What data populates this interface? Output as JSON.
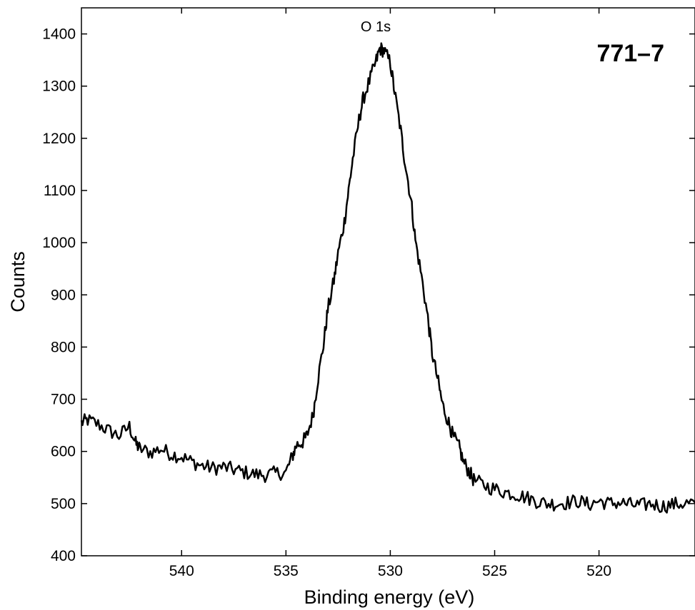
{
  "chart_data": {
    "type": "line",
    "title": "",
    "xlabel": "Binding energy (eV)",
    "ylabel": "Counts",
    "xlim": [
      544.8,
      515.4
    ],
    "ylim": [
      400,
      1450
    ],
    "x_reversed": true,
    "grid": false,
    "x_ticks": [
      540,
      535,
      530,
      525,
      520
    ],
    "y_ticks": [
      400,
      500,
      600,
      700,
      800,
      900,
      1000,
      1100,
      1200,
      1300,
      1400
    ],
    "annotations": [
      {
        "text": "O 1s",
        "x": 530.7,
        "y": 1405
      },
      {
        "text": "771–7",
        "position": "top-right"
      }
    ],
    "line_color": "#000000",
    "series": [
      {
        "x": [
          544.8,
          544.5,
          544.0,
          543.5,
          543.0,
          542.5,
          542.2,
          542.0,
          541.5,
          541.0,
          540.5,
          540.0,
          539.5,
          539.0,
          538.5,
          538.0,
          537.5,
          537.0,
          536.5,
          536.0,
          535.5,
          535.0,
          534.7,
          534.5,
          534.2,
          534.0,
          533.7,
          533.5,
          533.2,
          533.0,
          532.7,
          532.5,
          532.2,
          532.0,
          531.8,
          531.5,
          531.3,
          531.0,
          530.7,
          530.5,
          530.3,
          530.0,
          529.8,
          529.5,
          529.3,
          529.0,
          528.8,
          528.5,
          528.2,
          528.0,
          527.7,
          527.5,
          527.2,
          527.0,
          526.7,
          526.5,
          526.2,
          526.0,
          525.5,
          525.0,
          524.5,
          524.0,
          523.5,
          523.0,
          522.5,
          522.0,
          521.5,
          521.0,
          520.5,
          520.0,
          519.5,
          519.0,
          518.5,
          518.0,
          517.5,
          517.0,
          516.5,
          516.0,
          515.4
        ],
        "y": [
          655,
          660,
          652,
          640,
          630,
          648,
          615,
          605,
          598,
          605,
          595,
          590,
          580,
          572,
          568,
          570,
          565,
          560,
          556,
          555,
          558,
          560,
          590,
          612,
          618,
          630,
          670,
          730,
          805,
          870,
          928,
          980,
          1040,
          1100,
          1160,
          1235,
          1275,
          1310,
          1345,
          1372,
          1368,
          1345,
          1290,
          1215,
          1155,
          1080,
          1005,
          935,
          855,
          790,
          732,
          690,
          655,
          630,
          608,
          580,
          560,
          545,
          535,
          528,
          522,
          518,
          512,
          505,
          500,
          500,
          502,
          505,
          498,
          505,
          500,
          502,
          498,
          496,
          500,
          495,
          498,
          500,
          502
        ]
      }
    ]
  }
}
